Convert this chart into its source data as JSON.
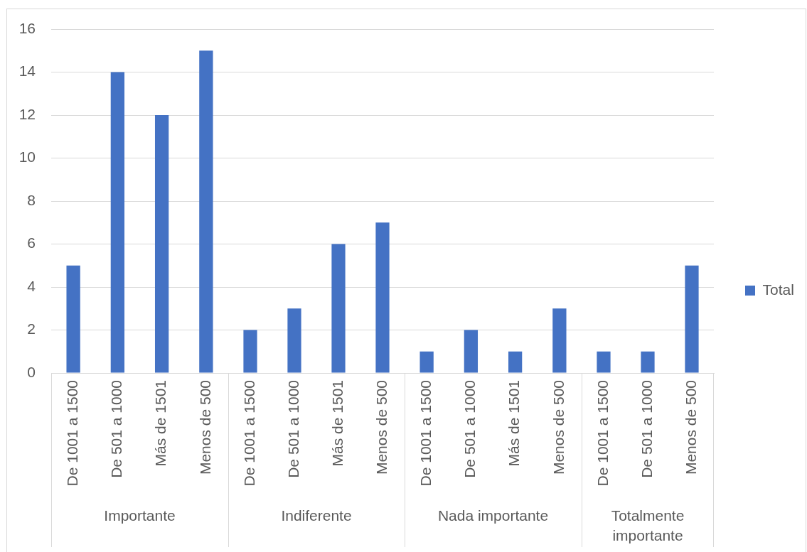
{
  "chart_data": [
    {
      "type": "bar",
      "categories": [
        "De 1001 a 1500",
        "De 501 a 1000",
        "Más de 1501",
        "Menos de 500"
      ],
      "values": [
        5,
        14,
        12,
        15
      ],
      "color": "#4472c4",
      "xlabel": "Importante",
      "ylim": [
        0,
        16
      ],
      "yticks": [
        0,
        2,
        4,
        6,
        8,
        10,
        12,
        14,
        16
      ],
      "grid": "y"
    },
    {
      "type": "bar",
      "categories": [
        "De 1001 a 1500",
        "De 501 a 1000",
        "Más de 1501",
        "Menos de 500"
      ],
      "values": [
        2,
        3,
        6,
        7
      ],
      "color": "#4472c4",
      "xlabel": "Indiferente",
      "ylim": [
        0,
        16
      ],
      "yticks": [
        0,
        2,
        4,
        6,
        8,
        10,
        12,
        14,
        16
      ],
      "grid": "y",
      "tick_labels": "x"
    },
    {
      "type": "bar",
      "categories": [
        "De 1001 a 1500",
        "De 501 a 1000",
        "Más de 1501",
        "Menos de 500"
      ],
      "values": [
        1,
        2,
        1,
        3
      ],
      "color": "#4472c4",
      "xlabel": "Nada importante",
      "ylim": [
        0,
        16
      ],
      "yticks": [
        0,
        2,
        4,
        6,
        8,
        10,
        12,
        14,
        16
      ],
      "grid": "y",
      "tick_labels": "x"
    },
    {
      "type": "bar",
      "categories": [
        "De 1001 a 1500",
        "De 501 a 1000",
        "Menos de 500"
      ],
      "series": [
        {
          "name": "Total",
          "color": "#4472c4",
          "values": [
            1,
            1,
            5
          ]
        }
      ],
      "xlabel": "Totalmente importante",
      "ylim": [
        0,
        16
      ],
      "yticks": [
        0,
        2,
        4,
        6,
        8,
        10,
        12,
        14,
        16
      ],
      "grid": "y",
      "tick_labels": "x",
      "legend": "right"
    }
  ]
}
